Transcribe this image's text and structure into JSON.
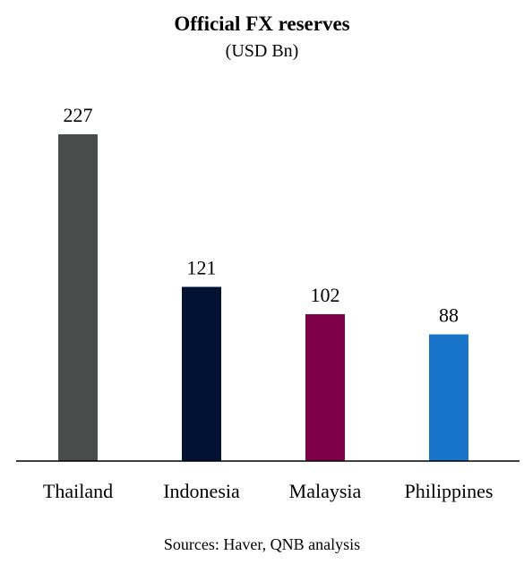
{
  "chart_data": {
    "type": "bar",
    "title": "Official FX reserves",
    "subtitle": "(USD Bn)",
    "categories": [
      "Thailand",
      "Indonesia",
      "Malaysia",
      "Philippines"
    ],
    "values": [
      227,
      121,
      102,
      88
    ],
    "data_labels": [
      "227",
      "121",
      "102",
      "88"
    ],
    "colors": [
      "#4a4c4b",
      "#011232",
      "#7d0048",
      "#1874c8"
    ],
    "ylim": [
      0,
      227
    ],
    "grid": false,
    "legend": "none",
    "source": "Sources: Haver, QNB analysis"
  }
}
